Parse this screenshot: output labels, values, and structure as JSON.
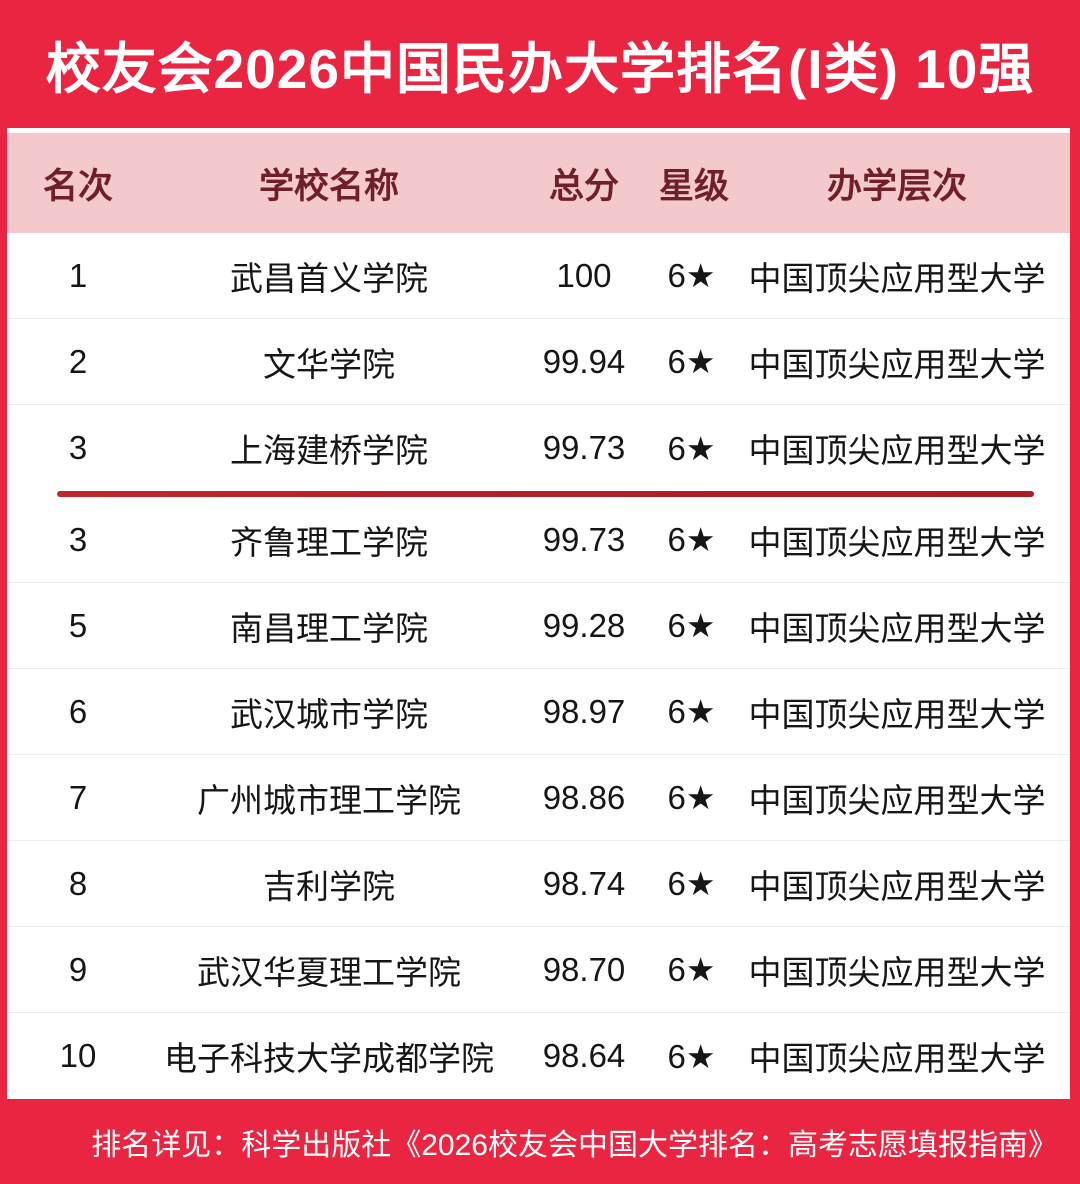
{
  "accent_colors": {
    "red": "#EA2542",
    "pink_header_bg": "#F3C9CC",
    "header_text_maroon": "#6E1F29",
    "top3_divider_red": "#B01F27",
    "row_divider_gray": "#EDEDED"
  },
  "header": {
    "title": "校友会2026中国民办大学排名(I类) 10强"
  },
  "table": {
    "columns": [
      {
        "key": "rank",
        "label": "名次"
      },
      {
        "key": "name",
        "label": "学校名称"
      },
      {
        "key": "score",
        "label": "总分"
      },
      {
        "key": "star",
        "label": "星级"
      },
      {
        "key": "level",
        "label": "办学层次"
      }
    ],
    "red_divider_after_row": 3,
    "rows": [
      {
        "rank": "1",
        "name": "武昌首义学院",
        "score": "100",
        "star": "6★",
        "level": "中国顶尖应用型大学"
      },
      {
        "rank": "2",
        "name": "文华学院",
        "score": "99.94",
        "star": "6★",
        "level": "中国顶尖应用型大学"
      },
      {
        "rank": "3",
        "name": "上海建桥学院",
        "score": "99.73",
        "star": "6★",
        "level": "中国顶尖应用型大学"
      },
      {
        "rank": "3",
        "name": "齐鲁理工学院",
        "score": "99.73",
        "star": "6★",
        "level": "中国顶尖应用型大学"
      },
      {
        "rank": "5",
        "name": "南昌理工学院",
        "score": "99.28",
        "star": "6★",
        "level": "中国顶尖应用型大学"
      },
      {
        "rank": "6",
        "name": "武汉城市学院",
        "score": "98.97",
        "star": "6★",
        "level": "中国顶尖应用型大学"
      },
      {
        "rank": "7",
        "name": "广州城市理工学院",
        "score": "98.86",
        "star": "6★",
        "level": "中国顶尖应用型大学"
      },
      {
        "rank": "8",
        "name": "吉利学院",
        "score": "98.74",
        "star": "6★",
        "level": "中国顶尖应用型大学"
      },
      {
        "rank": "9",
        "name": "武汉华夏理工学院",
        "score": "98.70",
        "star": "6★",
        "level": "中国顶尖应用型大学"
      },
      {
        "rank": "10",
        "name": "电子科技大学成都学院",
        "score": "98.64",
        "star": "6★",
        "level": "中国顶尖应用型大学"
      }
    ]
  },
  "footer": {
    "note": "排名详见：科学出版社《2026校友会中国大学排名：高考志愿填报指南》"
  },
  "chart_data": {
    "type": "table",
    "title": "校友会2026中国民办大学排名(I类) 10强",
    "columns": [
      "名次",
      "学校名称",
      "总分",
      "星级",
      "办学层次"
    ],
    "rows": [
      [
        "1",
        "武昌首义学院",
        "100",
        "6★",
        "中国顶尖应用型大学"
      ],
      [
        "2",
        "文华学院",
        "99.94",
        "6★",
        "中国顶尖应用型大学"
      ],
      [
        "3",
        "上海建桥学院",
        "99.73",
        "6★",
        "中国顶尖应用型大学"
      ],
      [
        "3",
        "齐鲁理工学院",
        "99.73",
        "6★",
        "中国顶尖应用型大学"
      ],
      [
        "5",
        "南昌理工学院",
        "99.28",
        "6★",
        "中国顶尖应用型大学"
      ],
      [
        "6",
        "武汉城市学院",
        "98.97",
        "6★",
        "中国顶尖应用型大学"
      ],
      [
        "7",
        "广州城市理工学院",
        "98.86",
        "6★",
        "中国顶尖应用型大学"
      ],
      [
        "8",
        "吉利学院",
        "98.74",
        "6★",
        "中国顶尖应用型大学"
      ],
      [
        "9",
        "武汉华夏理工学院",
        "98.70",
        "6★",
        "中国顶尖应用型大学"
      ],
      [
        "10",
        "电子科技大学成都学院",
        "98.64",
        "6★",
        "中国顶尖应用型大学"
      ]
    ],
    "notes": "排名详见：科学出版社《2026校友会中国大学排名：高考志愿填报指南》",
    "scores": [
      100,
      99.94,
      99.73,
      99.73,
      99.28,
      98.97,
      98.86,
      98.74,
      98.7,
      98.64
    ]
  }
}
